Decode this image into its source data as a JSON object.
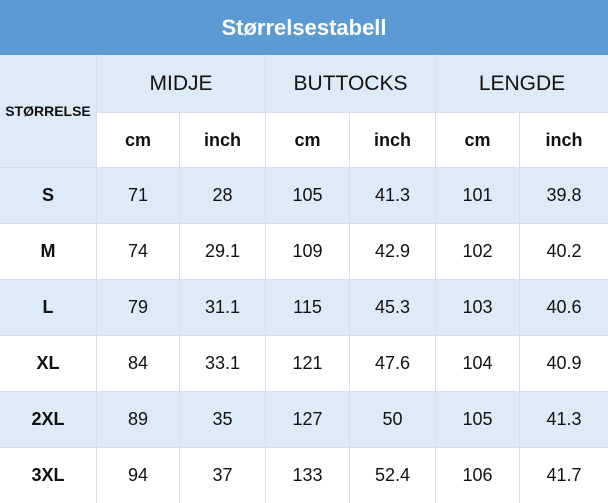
{
  "title": "Størrelsestabell",
  "table": {
    "size_header": "STØRRELSE",
    "groups": [
      "MIDJE",
      "BUTTOCKS",
      "LENGDE"
    ],
    "units": [
      "cm",
      "inch",
      "cm",
      "inch",
      "cm",
      "inch"
    ],
    "rows": [
      [
        "S",
        71,
        28,
        105,
        41.3,
        101,
        39.8
      ],
      [
        "M",
        74,
        29.1,
        109,
        42.9,
        102,
        40.2
      ],
      [
        "L",
        79,
        31.1,
        115,
        45.3,
        103,
        40.6
      ],
      [
        "XL",
        84,
        33.1,
        121,
        47.6,
        104,
        40.9
      ],
      [
        "2XL",
        89,
        35,
        127,
        50,
        105,
        41.3
      ],
      [
        "3XL",
        94,
        37,
        133,
        52.4,
        106,
        41.7
      ]
    ]
  }
}
